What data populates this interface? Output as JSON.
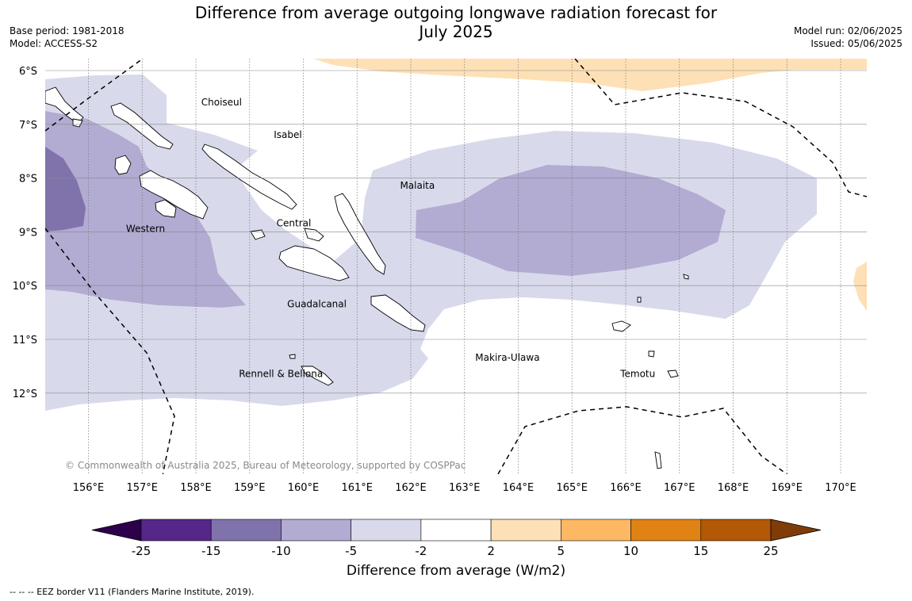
{
  "header": {
    "title_line1": "Difference from average outgoing longwave radiation forecast for",
    "title_line2": "July 2025",
    "base_period": "Base period: 1981-2018",
    "model": "Model: ACCESS-S2",
    "model_run": "Model run: 02/06/2025",
    "issued": "Issued: 05/06/2025"
  },
  "map": {
    "lon_ticks": [
      "156°E",
      "157°E",
      "158°E",
      "159°E",
      "160°E",
      "161°E",
      "162°E",
      "163°E",
      "164°E",
      "165°E",
      "166°E",
      "167°E",
      "168°E",
      "169°E",
      "170°E"
    ],
    "lat_ticks": [
      "6°S",
      "7°S",
      "8°S",
      "9°S",
      "10°S",
      "11°S",
      "12°S"
    ],
    "regions": [
      {
        "name": "Choiseul",
        "lon": 158.1,
        "lat": -6.65
      },
      {
        "name": "Isabel",
        "lon": 159.45,
        "lat": -7.25
      },
      {
        "name": "Malaita",
        "lon": 161.8,
        "lat": -8.2
      },
      {
        "name": "Western",
        "lon": 156.7,
        "lat": -9.0
      },
      {
        "name": "Central",
        "lon": 159.5,
        "lat": -8.9
      },
      {
        "name": "Guadalcanal",
        "lon": 159.7,
        "lat": -10.4
      },
      {
        "name": "Makira-Ulawa",
        "lon": 163.2,
        "lat": -11.4
      },
      {
        "name": "Rennell & Bellona",
        "lon": 158.8,
        "lat": -11.7
      },
      {
        "name": "Temotu",
        "lon": 165.9,
        "lat": -11.7
      }
    ],
    "copyright": "© Commonwealth of Australia 2025, Bureau of Meteorology, supported by COSPPac"
  },
  "colorbar": {
    "label": "Difference from average (W/m2)",
    "ticks": [
      "-25",
      "-15",
      "-10",
      "-5",
      "-2",
      "2",
      "5",
      "10",
      "15",
      "25"
    ],
    "under_color": "#2d004b",
    "over_color": "#7f3b08",
    "colors": [
      "#542788",
      "#8073ac",
      "#b2abd2",
      "#d8daeb",
      "#ffffff",
      "#fee0b6",
      "#fdb863",
      "#e08214",
      "#b35806"
    ]
  },
  "footnote": "--  --  -- EEZ border V11 (Flanders Marine Institute, 2019)."
}
